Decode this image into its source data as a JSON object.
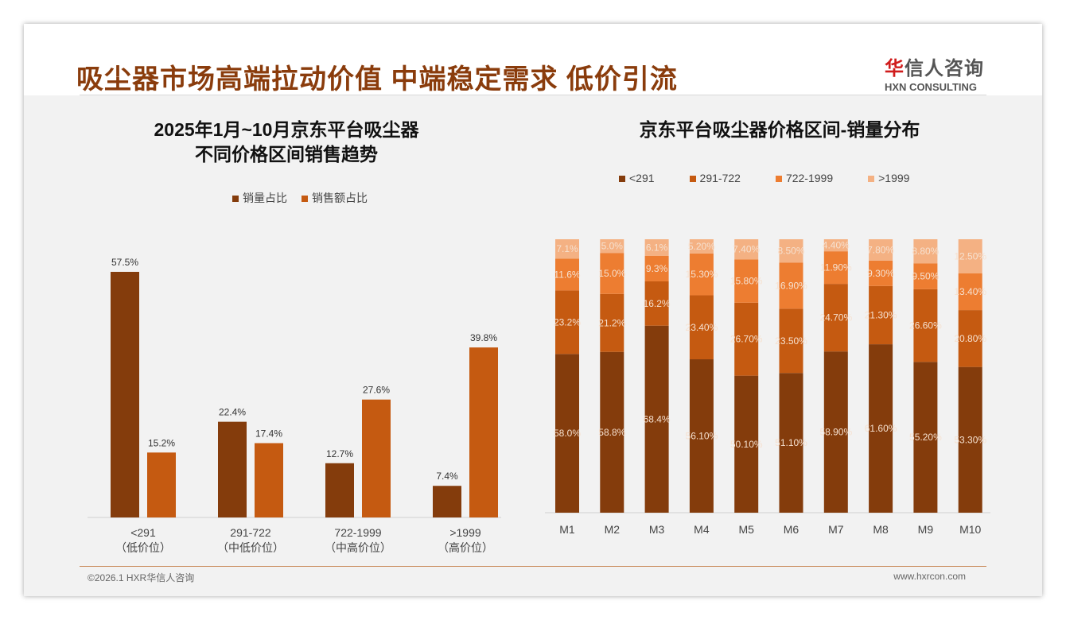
{
  "header": {
    "title": "吸尘器市场高端拉动价值 中端稳定需求 低价引流",
    "logo_cn_red": "华",
    "logo_cn": "信人咨询",
    "logo_en": "HXN CONSULTING"
  },
  "footer": {
    "left": "©2026.1 HXR华信人咨询",
    "right": "www.hxrcon.com"
  },
  "chart_data": [
    {
      "type": "bar",
      "title_line1": "2025年1月~10月京东平台吸尘器",
      "title_line2": "不同价格区间销售趋势",
      "categories": [
        "<291",
        "291-722",
        "722-1999",
        ">1999"
      ],
      "sublabels": [
        "（低价位）",
        "（中低价位）",
        "（中高价位）",
        "（高价位）"
      ],
      "series": [
        {
          "name": "销量占比",
          "color": "#843c0c",
          "values": [
            57.5,
            22.4,
            12.7,
            7.4
          ]
        },
        {
          "name": "销售额占比",
          "color": "#c55a11",
          "values": [
            15.2,
            17.4,
            27.6,
            39.8
          ]
        }
      ],
      "ylim": [
        0,
        60
      ],
      "legend": "top"
    },
    {
      "type": "bar",
      "stacked": true,
      "title": "京东平台吸尘器价格区间-销量分布",
      "categories": [
        "M1",
        "M2",
        "M3",
        "M4",
        "M5",
        "M6",
        "M7",
        "M8",
        "M9",
        "M10"
      ],
      "series": [
        {
          "name": "<291",
          "color": "#843c0c",
          "values": [
            58.0,
            58.8,
            68.4,
            56.1,
            50.1,
            51.1,
            58.9,
            61.6,
            55.2,
            53.3
          ],
          "labels": [
            "58.0%",
            "58.8%",
            "68.4%",
            "56.10%",
            "50.10%",
            "51.10%",
            "58.90%",
            "61.60%",
            "55.20%",
            "53.30%"
          ]
        },
        {
          "name": "291-722",
          "color": "#c55a11",
          "values": [
            23.2,
            21.2,
            16.2,
            23.4,
            26.7,
            23.5,
            24.7,
            21.3,
            26.6,
            20.8
          ],
          "labels": [
            "23.2%",
            "21.2%",
            "16.2%",
            "23.40%",
            "26.70%",
            "23.50%",
            "24.70%",
            "21.30%",
            "26.60%",
            "20.80%"
          ]
        },
        {
          "name": "722-1999",
          "color": "#ed7d31",
          "values": [
            11.6,
            15.0,
            9.3,
            15.3,
            15.8,
            16.9,
            11.9,
            9.3,
            9.5,
            13.4
          ],
          "labels": [
            "11.6%",
            "15.0%",
            "9.3%",
            "15.30%",
            "15.80%",
            "16.90%",
            "11.90%",
            "9.30%",
            "9.50%",
            "13.40%"
          ]
        },
        {
          "name": ">1999",
          "color": "#f4b183",
          "values": [
            7.1,
            5.0,
            6.1,
            5.2,
            7.4,
            8.5,
            4.4,
            7.8,
            8.8,
            12.5
          ],
          "labels": [
            "7.1%",
            "5.0%",
            "6.1%",
            "5.20%",
            "7.40%",
            "8.50%",
            "4.40%",
            "7.80%",
            "8.80%",
            "12.50%"
          ]
        }
      ],
      "ylim": [
        0,
        100
      ],
      "legend": "top"
    }
  ]
}
